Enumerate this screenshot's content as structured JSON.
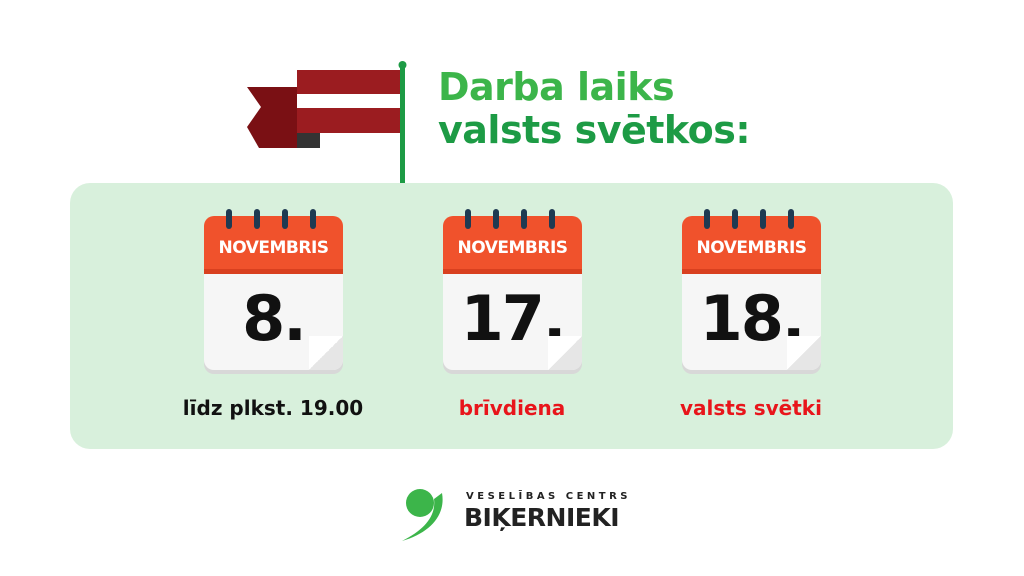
{
  "header": {
    "title_line1": "Darba laiks",
    "title_line2": "valsts svētkos:"
  },
  "colors": {
    "green": "#3cb54a",
    "dark_green": "#1d9b45",
    "calendar_red": "#f0522c",
    "flag_red": "#9b1c20",
    "panel": "#d8f0dc",
    "text_red": "#e8151b"
  },
  "calendars": [
    {
      "month": "NOVEMBRIS",
      "day": "8.",
      "note": "līdz plkst. 19.00",
      "note_color": "#111111"
    },
    {
      "month": "NOVEMBRIS",
      "day": "17.",
      "note": "brīvdiena",
      "note_color": "#e8151b"
    },
    {
      "month": "NOVEMBRIS",
      "day": "18.",
      "note": "valsts svētki",
      "note_color": "#e8151b"
    }
  ],
  "logo": {
    "tagline": "VESELĪBAS CENTRS",
    "name": "BIĶERNIEKI"
  }
}
